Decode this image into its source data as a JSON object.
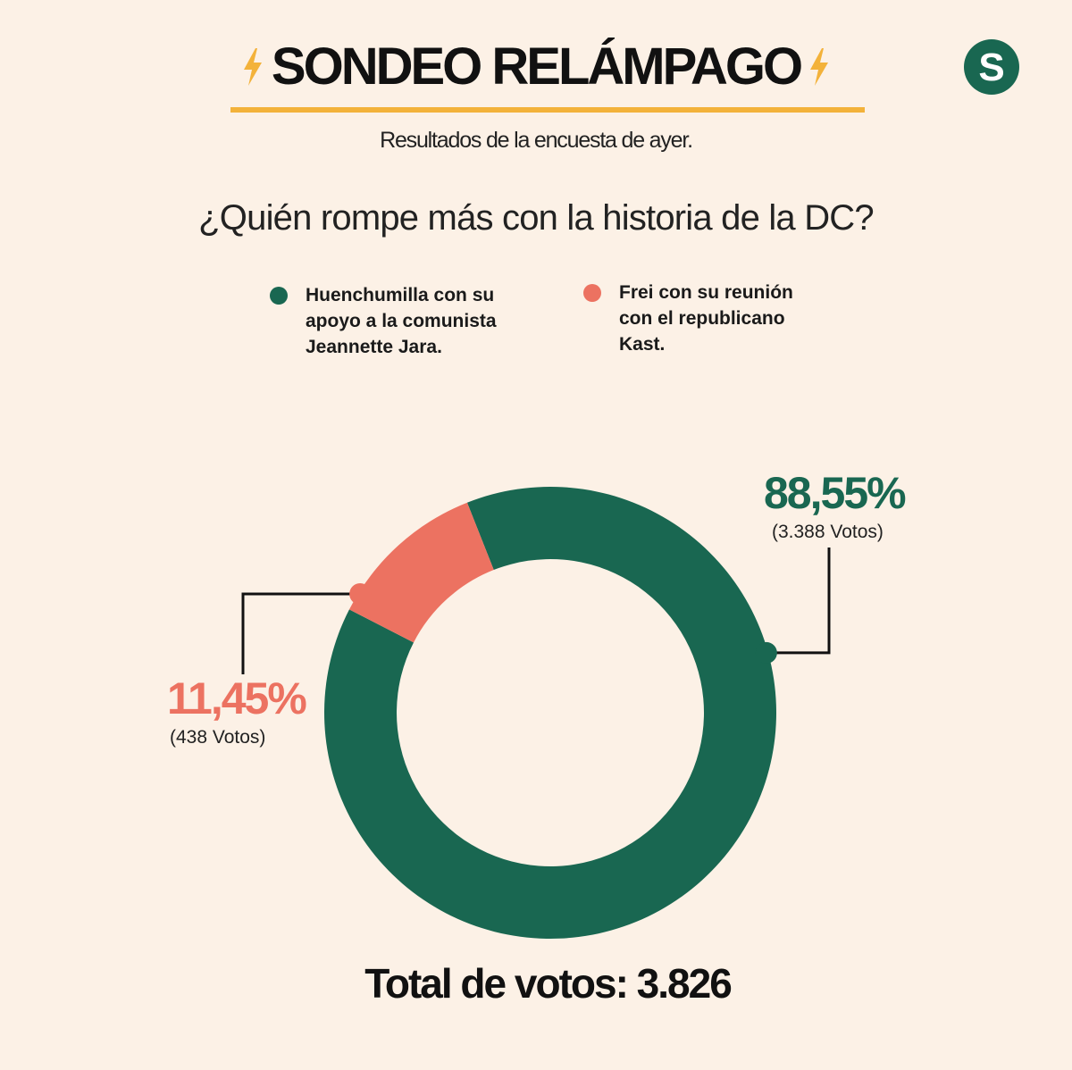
{
  "header": {
    "title": "SONDEO RELÁMPAGO",
    "subtitle": "Resultados de la encuesta de ayer.",
    "logo_letter": "S",
    "accent_color": "#f3b23a"
  },
  "question": "¿Quién rompe más con la historia de la DC?",
  "legend": [
    {
      "label": "Huenchumilla con su apoyo a la comunista Jeannette Jara.",
      "color": "#196751"
    },
    {
      "label": "Frei con su reunión con el republicano Kast.",
      "color": "#ec7261"
    }
  ],
  "chart_data": {
    "type": "pie",
    "style": "donut",
    "slices": [
      {
        "label": "Huenchumilla con su apoyo a la comunista Jeannette Jara.",
        "value": 88.55,
        "votes": 3388,
        "display_pct": "88,55%",
        "display_votes": "(3.388 Votos)",
        "color": "#196751"
      },
      {
        "label": "Frei con su reunión con el republicano Kast.",
        "value": 11.45,
        "votes": 438,
        "display_pct": "11,45%",
        "display_votes": "(438 Votos)",
        "color": "#ec7261"
      }
    ]
  },
  "total": "Total de votos: 3.826"
}
